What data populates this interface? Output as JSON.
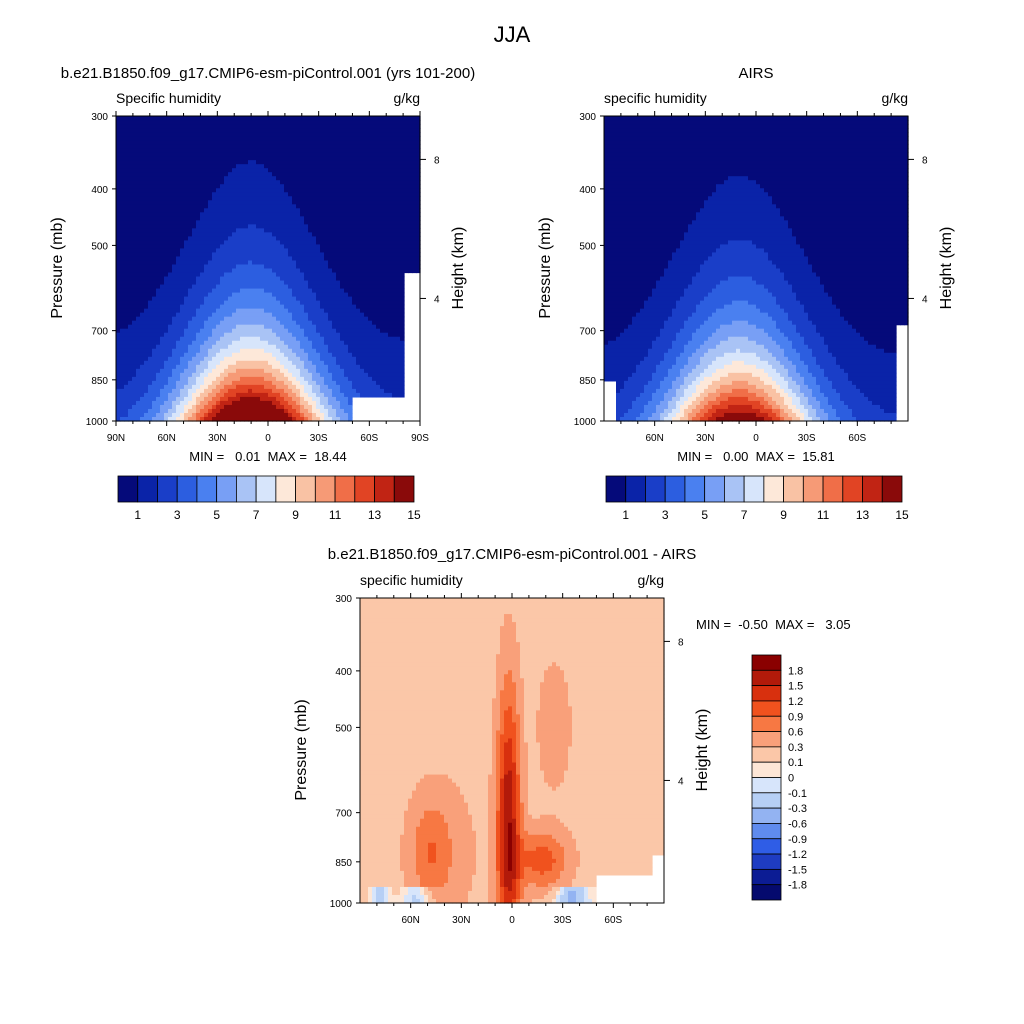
{
  "title": "JJA",
  "chart_data": [
    {
      "type": "heatmap",
      "title": "b.e21.B1850.f09_g17.CMIP6-esm-piControl.001 (yrs 101-200)",
      "left_string": "Specific humidity",
      "right_string": "g/kg",
      "xlabel": "",
      "ylabel": "Pressure (mb)",
      "y2label": "Height (km)",
      "x_ticks": [
        "90N",
        "60N",
        "30N",
        "0",
        "30S",
        "60S",
        "90S"
      ],
      "y_ticks": [
        "300",
        "400",
        "500",
        "700",
        "850",
        "1000"
      ],
      "y2_ticks": [
        "8",
        "4"
      ],
      "stats": "MIN =   0.01  MAX =  18.44",
      "min": 0.01,
      "max": 18.44,
      "colorbar_labels": [
        "1",
        "3",
        "5",
        "7",
        "9",
        "11",
        "13",
        "15"
      ],
      "peak_lat": 10,
      "blank_region": "below 900 mb poleward of 50S"
    },
    {
      "type": "heatmap",
      "title": "AIRS",
      "left_string": "specific humidity",
      "right_string": "g/kg",
      "xlabel": "",
      "ylabel": "Pressure (mb)",
      "y2label": "Height (km)",
      "x_ticks": [
        "60N",
        "30N",
        "0",
        "30S",
        "60S"
      ],
      "y_ticks": [
        "300",
        "400",
        "500",
        "700",
        "850",
        "1000"
      ],
      "y2_ticks": [
        "8",
        "4"
      ],
      "stats": "MIN =   0.00  MAX =  15.81",
      "min": 0.0,
      "max": 15.81,
      "colorbar_labels": [
        "1",
        "3",
        "5",
        "7",
        "9",
        "11",
        "13",
        "15"
      ],
      "peak_lat": 10
    },
    {
      "type": "heatmap",
      "title": "b.e21.B1850.f09_g17.CMIP6-esm-piControl.001 - AIRS",
      "left_string": "specific humidity",
      "right_string": "g/kg",
      "xlabel": "",
      "ylabel": "Pressure (mb)",
      "y2label": "Height (km)",
      "x_ticks": [
        "60N",
        "30N",
        "0",
        "30S",
        "60S"
      ],
      "y_ticks": [
        "300",
        "400",
        "500",
        "700",
        "850",
        "1000"
      ],
      "y2_ticks": [
        "8",
        "4"
      ],
      "stats": "MIN =  -0.50  MAX =   3.05",
      "min": -0.5,
      "max": 3.05,
      "colorbar_labels": [
        "1.8",
        "1.5",
        "1.2",
        "0.9",
        "0.6",
        "0.3",
        "0.1",
        "0",
        "-0.1",
        "-0.3",
        "-0.6",
        "-0.9",
        "-1.2",
        "-1.5",
        "-1.8"
      ],
      "peak_lat": 0
    }
  ],
  "colors": {
    "seq_palette": [
      "#050a7a",
      "#0a23a8",
      "#1a3ec8",
      "#2c5ee0",
      "#4a80f0",
      "#789ff5",
      "#a9c3f5",
      "#d7e5fb",
      "#fde8d9",
      "#f9c2a4",
      "#f69a76",
      "#f06e48",
      "#e14424",
      "#c12414",
      "#8a0a0a"
    ],
    "div_palette": [
      "#8a0000",
      "#b21a0a",
      "#d8300e",
      "#f0521e",
      "#f77843",
      "#f9a07a",
      "#fbc7a8",
      "#fde6d6",
      "#d7e5fb",
      "#b6cff5",
      "#93b3f2",
      "#5f8bee",
      "#2f5de6",
      "#1e3cc2",
      "#0c1c94",
      "#050a6e"
    ]
  }
}
